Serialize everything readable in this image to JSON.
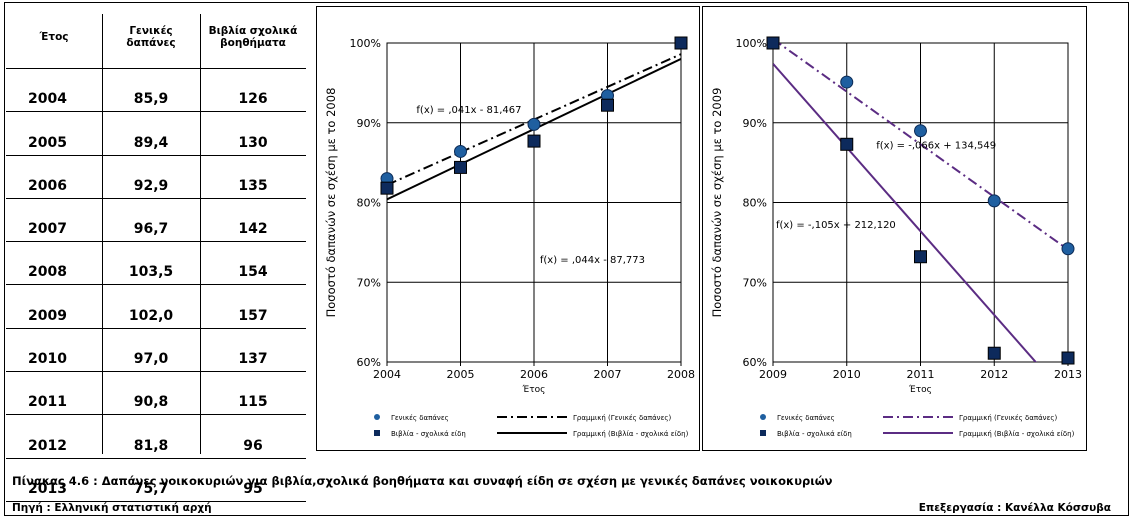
{
  "table": {
    "headers": [
      "Έτος",
      "Γενικές δαπάνες",
      "Βιβλία σχολικά βοηθήματα"
    ],
    "rows": [
      [
        "2004",
        "85,9",
        "126"
      ],
      [
        "2005",
        "89,4",
        "130"
      ],
      [
        "2006",
        "92,9",
        "135"
      ],
      [
        "2007",
        "96,7",
        "142"
      ],
      [
        "2008",
        "103,5",
        "154"
      ],
      [
        "2009",
        "102,0",
        "157"
      ],
      [
        "2010",
        "97,0",
        "137"
      ],
      [
        "2011",
        "90,8",
        "115"
      ],
      [
        "2012",
        "81,8",
        "96"
      ],
      [
        "2013",
        "75,7",
        "95"
      ]
    ]
  },
  "chart_data": [
    {
      "type": "scatter",
      "xlabel": "Έτος",
      "ylabel": "Ποσοστό δαπανών σε σχέση με το 2008",
      "x": [
        2004,
        2005,
        2006,
        2007,
        2008
      ],
      "x_ticks": [
        "2004",
        "2005",
        "2006",
        "2007",
        "2008"
      ],
      "y_ticks": [
        "60%",
        "70%",
        "80%",
        "90%",
        "100%"
      ],
      "xlim": [
        2004,
        2008
      ],
      "ylim": [
        60,
        100
      ],
      "grid": true,
      "legend_position": "bottom",
      "series": [
        {
          "name": "Γενικές δαπάνες",
          "marker": "circle",
          "color": "#1f5fa0",
          "values": [
            83.0,
            86.4,
            89.8,
            93.4,
            100.0
          ]
        },
        {
          "name": "Βιβλία - σχολικά είδη",
          "marker": "square",
          "color": "#0d2a5c",
          "values": [
            81.8,
            84.4,
            87.7,
            92.2,
            100.0
          ]
        }
      ],
      "trendlines": [
        {
          "name": "Γραμμική (Γενικές δαπάνες)",
          "style": "dashdot",
          "color": "#000000",
          "slope": 4.1,
          "intercept_at_x0": 82.2,
          "label": "f(x) = ,041x - 81,467"
        },
        {
          "name": "Γραμμική (Βιβλία - σχολικά είδη)",
          "style": "solid",
          "color": "#000000",
          "slope": 4.4,
          "intercept_at_x0": 80.4,
          "label": "f(x) = ,044x - 87,773"
        }
      ]
    },
    {
      "type": "scatter",
      "xlabel": "Έτος",
      "ylabel": "Ποσοστό δαπανών σε σχέση με το 2009",
      "x": [
        2009,
        2010,
        2011,
        2012,
        2013
      ],
      "x_ticks": [
        "2009",
        "2010",
        "2011",
        "2012",
        "2013"
      ],
      "y_ticks": [
        "60%",
        "70%",
        "80%",
        "90%",
        "100%"
      ],
      "xlim": [
        2009,
        2013
      ],
      "ylim": [
        60,
        100
      ],
      "grid": true,
      "legend_position": "bottom",
      "series": [
        {
          "name": "Γενικές δαπάνες",
          "marker": "circle",
          "color": "#1f5fa0",
          "values": [
            100.0,
            95.1,
            89.0,
            80.2,
            74.2
          ]
        },
        {
          "name": "Βιβλία - σχολικά είδη",
          "marker": "square",
          "color": "#0d2a5c",
          "values": [
            100.0,
            87.3,
            73.2,
            61.1,
            60.5
          ]
        }
      ],
      "trendlines": [
        {
          "name": "Γραμμική (Γενικές δαπάνες)",
          "style": "dashdot",
          "color": "#5b2c83",
          "slope": -6.6,
          "intercept_at_x0": 100.5,
          "label": "f(x) = -,066x + 134,549"
        },
        {
          "name": "Γραμμική (Βιβλία - σχολικά είδη)",
          "style": "solid",
          "color": "#5b2c83",
          "slope": -10.5,
          "intercept_at_x0": 97.4,
          "label": "f(x) = -,105x + 212,120"
        }
      ]
    }
  ],
  "caption": "Πίνακας 4.6 : Δαπάνες νοικοκυριών για βιβλία,σχολικά βοηθήματα  και συναφή είδη σε σχέση με γενικές δαπάνες νοικοκυριών",
  "source": "Πηγή : Ελληνική στατιστική αρχή",
  "processing": "Επεξεργασία : Κανέλλα Κόσσυβα"
}
